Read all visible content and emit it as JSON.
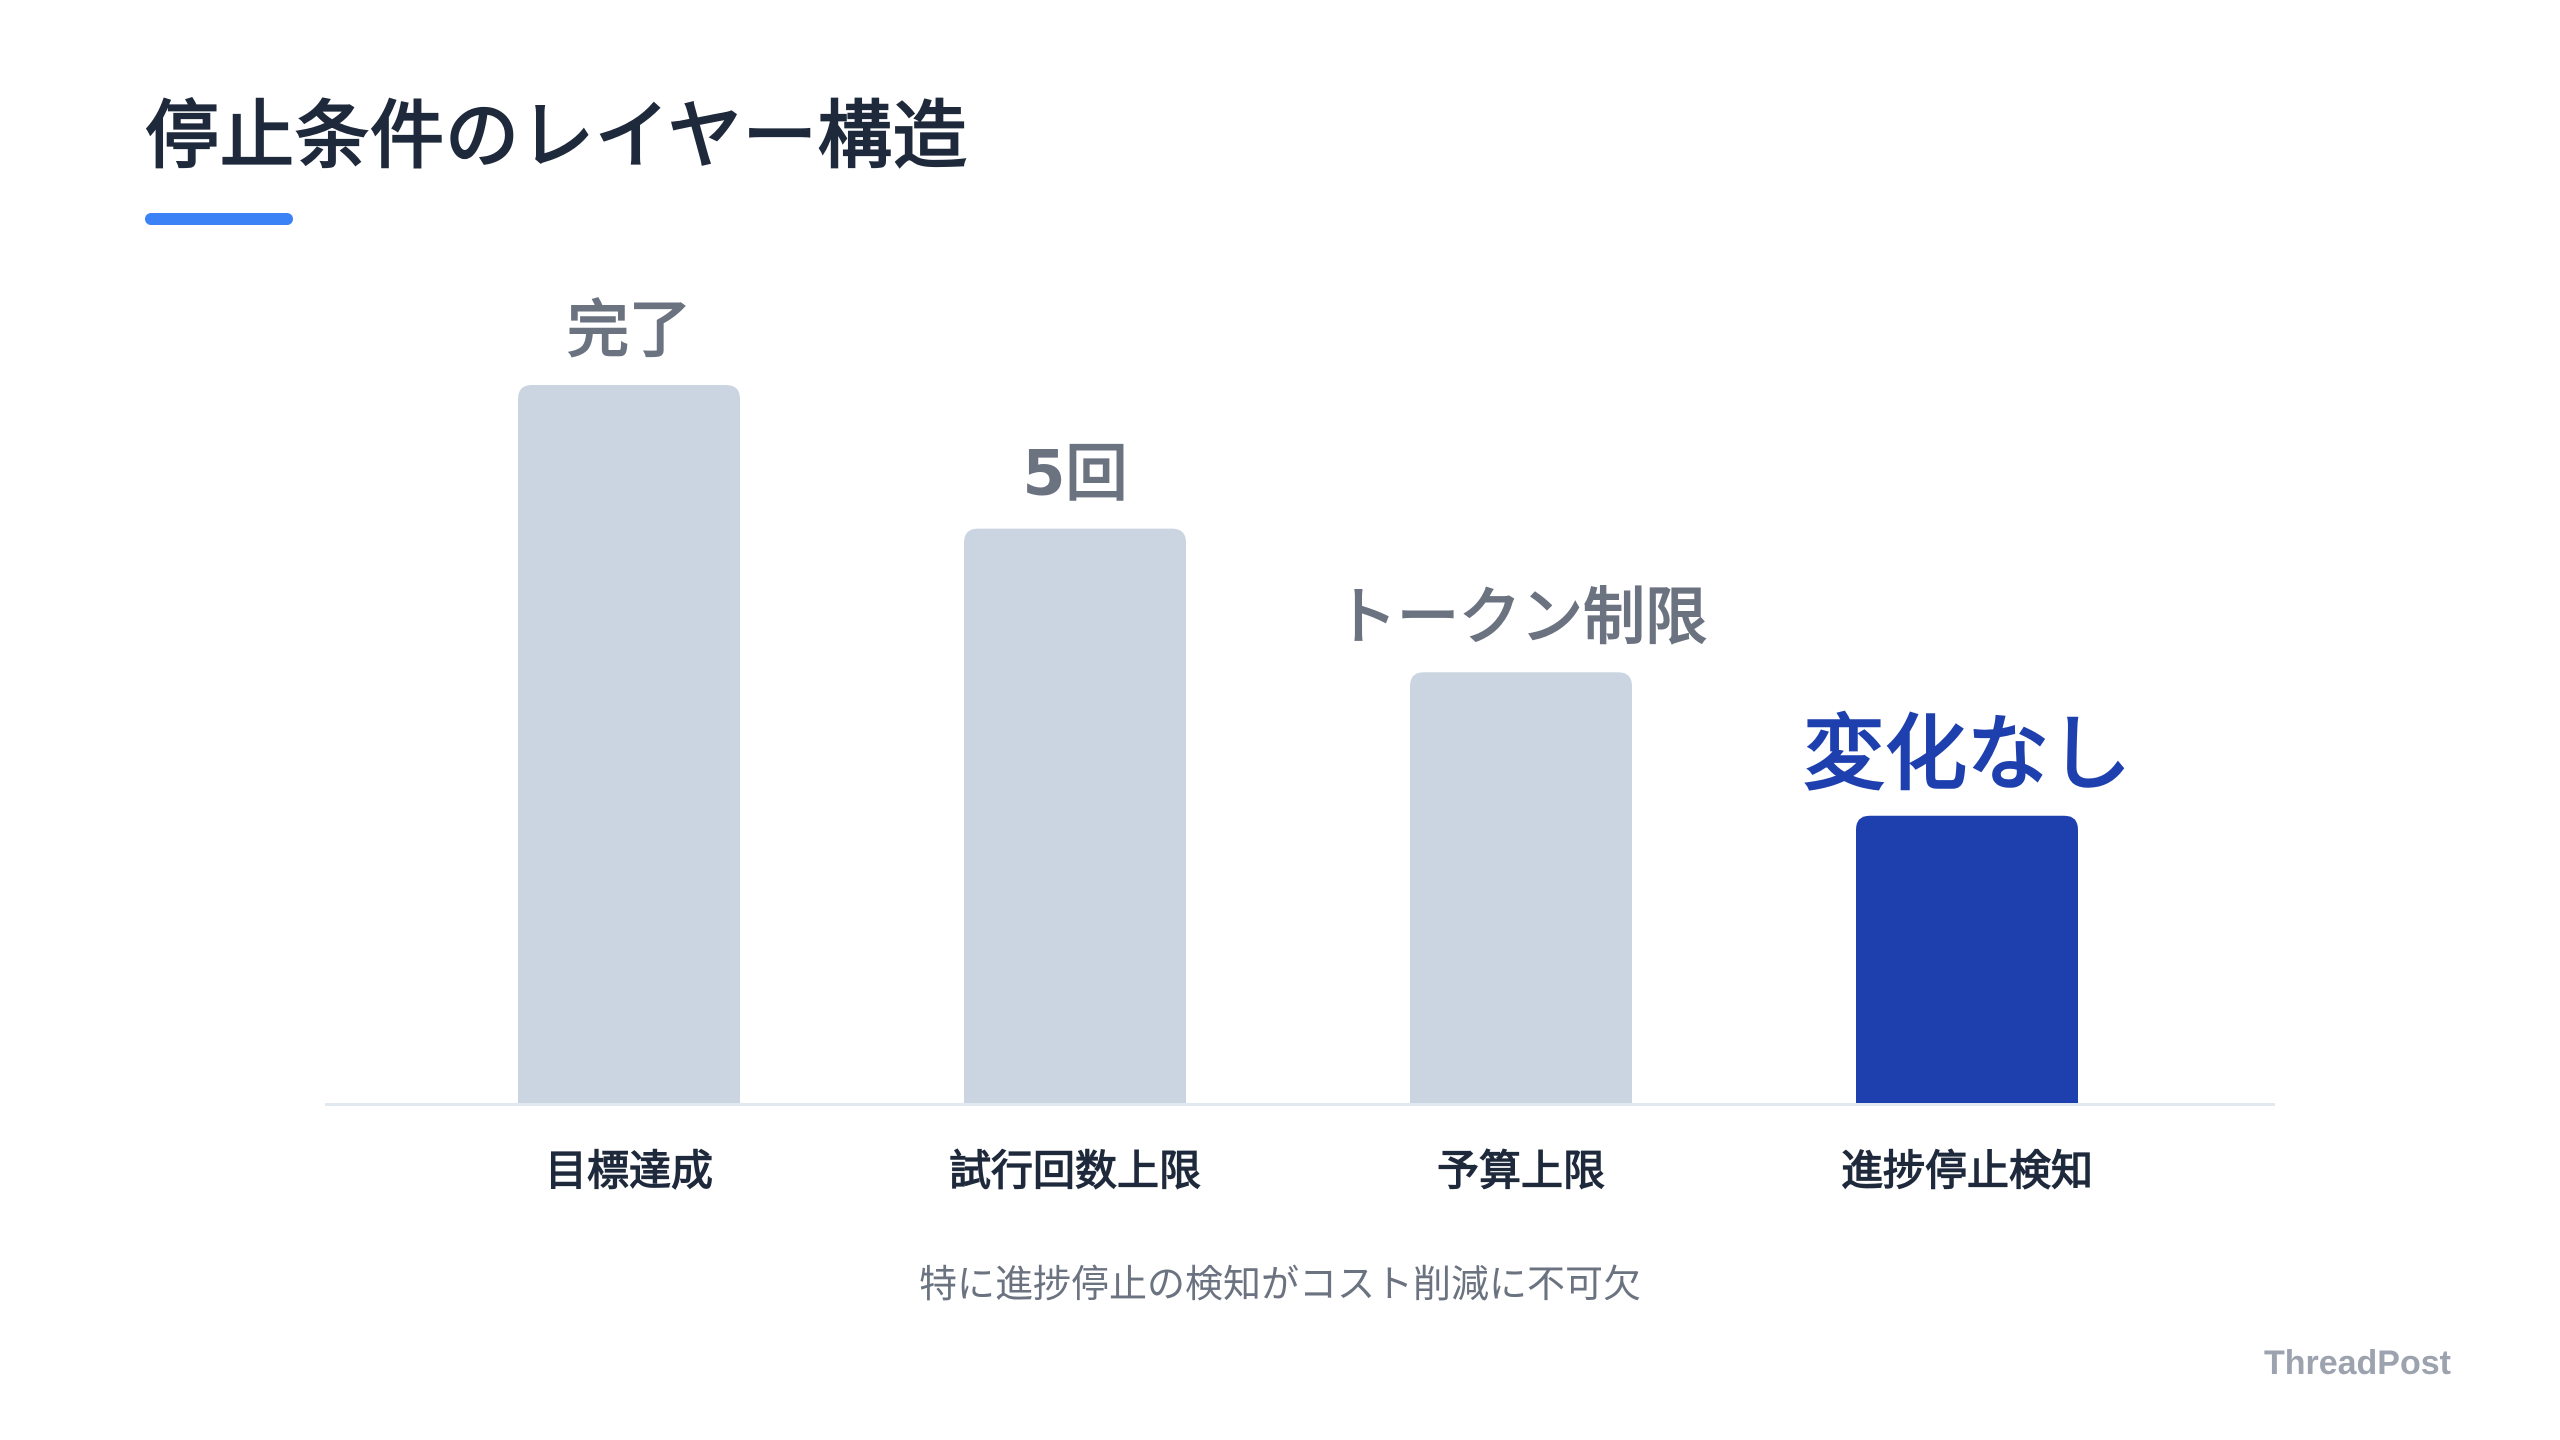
{
  "page": {
    "title": "停止条件のレイヤー構造",
    "footnote": "特に進捗停止の検知がコスト削減に不可欠",
    "brand": "ThreadPost"
  },
  "colors": {
    "accent": "#3b82f6",
    "bar_default": "#cbd5e1",
    "bar_highlight": "#1e40af",
    "label_default": "#6b7280",
    "label_highlight": "#1e40af",
    "category_text": "#1e293b",
    "baseline": "#e2e8f0"
  },
  "chart_data": {
    "type": "bar",
    "title": "",
    "xlabel": "",
    "ylabel": "",
    "ylim": [
      0,
      5
    ],
    "grid": false,
    "legend": "none",
    "categories": [
      "目標達成",
      "試行回数上限",
      "予算上限",
      "進捗停止検知"
    ],
    "values": [
      5,
      4,
      3,
      2
    ],
    "bar_labels": [
      "完了",
      "5回",
      "トークン制限",
      "変化なし"
    ],
    "highlight_index": 3
  }
}
